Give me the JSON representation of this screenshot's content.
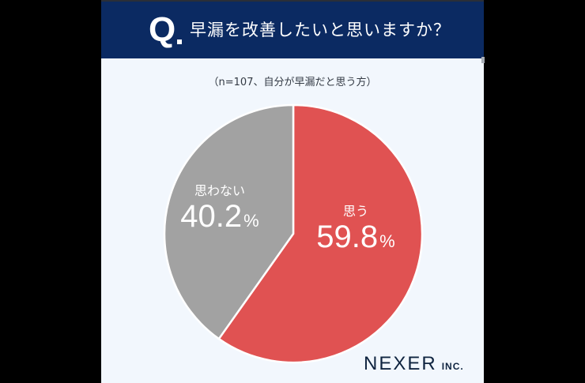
{
  "header": {
    "q_mark": "Q",
    "question": "早漏を改善したいと思いますか？"
  },
  "sample_note": "（n=107、自分が早漏だと思う方）",
  "labels": {
    "yes": {
      "category": "思う",
      "value": "59.8",
      "unit": "%"
    },
    "no": {
      "category": "思わない",
      "value": "40.2",
      "unit": "%"
    }
  },
  "logo": {
    "name": "NEXER",
    "suffix": "INC."
  },
  "colors": {
    "header_bg": "#0b2a62",
    "card_bg": "#f2f7fd",
    "yes": "#e05252",
    "no": "#a2a2a2"
  },
  "chart_data": {
    "type": "pie",
    "title": "早漏を改善したいと思いますか？",
    "subtitle": "（n=107、自分が早漏だと思う方）",
    "categories": [
      "思う",
      "思わない"
    ],
    "values": [
      59.8,
      40.2
    ],
    "unit": "%",
    "colors": [
      "#e05252",
      "#a2a2a2"
    ],
    "start_angle": "12 o'clock, clockwise",
    "legend": "inline labels"
  }
}
